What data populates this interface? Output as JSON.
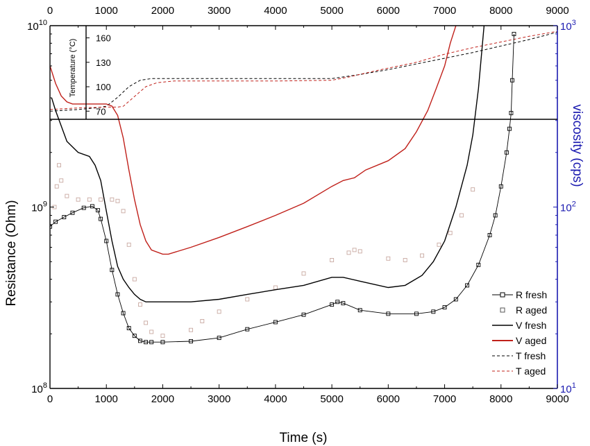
{
  "chart_data": {
    "type": "line",
    "title": "",
    "xlabel": "Time (s)",
    "ylabel": "Resistance (Ohm)",
    "y2label": "viscosity (cps)",
    "inset_ylabel": "Temperature (°C)",
    "xlim": [
      0,
      9000
    ],
    "ylim": [
      100000000,
      10000000000
    ],
    "y2lim": [
      10,
      1000
    ],
    "y_scale": "log",
    "y2_scale": "log",
    "x_ticks": [
      "0",
      "1000",
      "2000",
      "3000",
      "4000",
      "5000",
      "6000",
      "7000",
      "8000",
      "9000"
    ],
    "y_ticks": [
      {
        "base": "10",
        "exp": "8",
        "value": 100000000
      },
      {
        "base": "10",
        "exp": "9",
        "value": 1000000000
      },
      {
        "base": "10",
        "exp": "10",
        "value": 10000000000
      }
    ],
    "y2_ticks": [
      {
        "base": "10",
        "exp": "1",
        "value": 10
      },
      {
        "base": "10",
        "exp": "2",
        "value": 100
      },
      {
        "base": "10",
        "exp": "3",
        "value": 1000
      }
    ],
    "inset_ticks": [
      "70",
      "100",
      "130",
      "160"
    ],
    "inset_ylim": [
      60,
      175
    ],
    "legend_position": "bottom-right",
    "grid": false,
    "colors": {
      "fresh": "#000000",
      "aged": "#c0201a",
      "r_aged_marker": "#c8a8a0",
      "right_axis": "#1a1ab0"
    },
    "series": [
      {
        "name": "R fresh",
        "axis": "left",
        "style": "markers-line",
        "color": "#000000",
        "x": [
          0,
          100,
          250,
          400,
          600,
          750,
          850,
          900,
          1000,
          1100,
          1200,
          1300,
          1400,
          1500,
          1600,
          1700,
          1800,
          2000,
          2500,
          3000,
          3500,
          4000,
          4500,
          5000,
          5100,
          5200,
          5500,
          6000,
          6500,
          6800,
          7000,
          7200,
          7400,
          7600,
          7800,
          7900,
          8000,
          8100,
          8150,
          8180,
          8200,
          8230
        ],
        "y": [
          780000000,
          830000000,
          880000000,
          930000000,
          990000000,
          1010000000,
          960000000,
          860000000,
          650000000,
          450000000,
          330000000,
          260000000,
          215000000,
          195000000,
          183000000,
          180000000,
          180000000,
          180000000,
          182000000,
          190000000,
          212000000,
          232000000,
          255000000,
          290000000,
          300000000,
          295000000,
          270000000,
          258000000,
          258000000,
          265000000,
          280000000,
          310000000,
          370000000,
          480000000,
          700000000,
          900000000,
          1300000000,
          2000000000,
          2700000000,
          3300000000,
          5000000000,
          9000000000
        ]
      },
      {
        "name": "R aged",
        "axis": "left",
        "style": "markers",
        "color": "#c8a8a0",
        "x": [
          80,
          120,
          160,
          200,
          300,
          500,
          700,
          900,
          1100,
          1200,
          1300,
          1400,
          1500,
          1600,
          1700,
          1800,
          2000,
          2500,
          2700,
          3000,
          3500,
          4000,
          4500,
          5000,
          5300,
          5400,
          5500,
          6000,
          6300,
          6600,
          6900,
          7100,
          7300,
          7500
        ],
        "y": [
          1000000000,
          1300000000,
          1700000000,
          1400000000,
          1150000000,
          1100000000,
          1100000000,
          1100000000,
          1100000000,
          1080000000,
          950000000,
          620000000,
          400000000,
          290000000,
          230000000,
          205000000,
          195000000,
          210000000,
          235000000,
          265000000,
          310000000,
          360000000,
          430000000,
          510000000,
          560000000,
          580000000,
          570000000,
          520000000,
          510000000,
          540000000,
          620000000,
          720000000,
          900000000,
          1250000000
        ]
      },
      {
        "name": "V fresh",
        "axis": "right",
        "style": "line",
        "color": "#000000",
        "x": [
          30,
          100,
          300,
          500,
          700,
          800,
          900,
          1000,
          1100,
          1200,
          1300,
          1400,
          1500,
          1600,
          1700,
          2000,
          2500,
          3000,
          3500,
          4000,
          4500,
          5000,
          5200,
          5500,
          6000,
          6300,
          6600,
          6800,
          7000,
          7200,
          7400,
          7500,
          7600,
          7700
        ],
        "y": [
          400,
          340,
          230,
          200,
          190,
          170,
          140,
          95,
          65,
          47,
          40,
          36,
          33,
          31,
          30,
          30,
          30,
          31,
          33,
          35,
          37,
          41,
          41,
          39,
          36,
          37,
          42,
          50,
          65,
          100,
          170,
          250,
          450,
          1000
        ]
      },
      {
        "name": "V aged",
        "axis": "right",
        "style": "line",
        "color": "#c0201a",
        "x": [
          0,
          100,
          200,
          300,
          400,
          600,
          800,
          1000,
          1100,
          1200,
          1300,
          1400,
          1500,
          1600,
          1700,
          1800,
          2000,
          2100,
          2500,
          3000,
          3500,
          4000,
          4500,
          5000,
          5200,
          5400,
          5600,
          6000,
          6300,
          6500,
          6700,
          6850,
          7000,
          7100,
          7200,
          7300
        ],
        "y": [
          600,
          480,
          410,
          380,
          370,
          370,
          370,
          370,
          360,
          320,
          240,
          160,
          110,
          80,
          65,
          58,
          55,
          55,
          60,
          68,
          78,
          90,
          105,
          130,
          140,
          145,
          160,
          180,
          210,
          260,
          340,
          450,
          600,
          800,
          1000,
          1200
        ]
      },
      {
        "name": "T fresh",
        "axis": "inset",
        "style": "dashed",
        "color": "#000000",
        "x": [
          0,
          500,
          800,
          1000,
          1200,
          1400,
          1600,
          1800,
          2000,
          3000,
          4000,
          5000,
          5500,
          6000,
          6500,
          7000,
          7500,
          8000,
          8500,
          9000
        ],
        "y": [
          70,
          72,
          74,
          76,
          87,
          100,
          108,
          110,
          110,
          110,
          110,
          110,
          115,
          121,
          128,
          135,
          142,
          150,
          158,
          167
        ]
      },
      {
        "name": "T aged",
        "axis": "inset",
        "style": "dashed",
        "color": "#c0201a",
        "x": [
          0,
          500,
          1000,
          1200,
          1300,
          1500,
          1700,
          1900,
          2200,
          3000,
          4000,
          5000,
          5300,
          5800,
          6500,
          7000,
          7500,
          8000,
          8500,
          9000
        ],
        "y": [
          72,
          74,
          75,
          75,
          76,
          88,
          100,
          105,
          107,
          107,
          107,
          108,
          112,
          120,
          130,
          140,
          148,
          155,
          162,
          168
        ]
      }
    ]
  }
}
